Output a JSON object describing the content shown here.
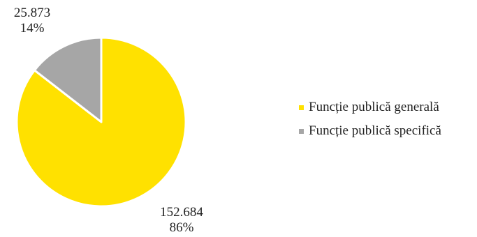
{
  "chart_data": {
    "type": "pie",
    "title": "",
    "categories": [
      "Funcție publică generală",
      "Funcție publică specifică"
    ],
    "values": [
      152684,
      25873
    ],
    "value_labels": [
      "152.684",
      "25.873"
    ],
    "percent_labels": [
      "86%",
      "14%"
    ],
    "colors": [
      "#FFE100",
      "#A6A6A6"
    ],
    "legend_position": "right",
    "start_angle": "top, clockwise"
  }
}
